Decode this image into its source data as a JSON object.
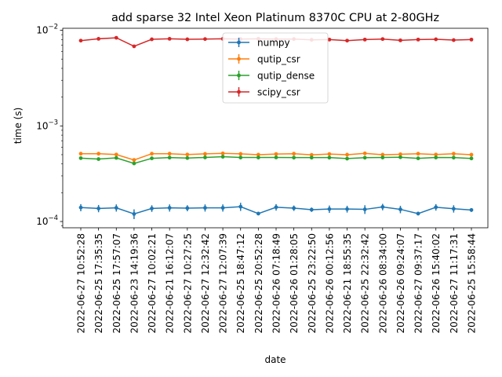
{
  "chart_data": {
    "type": "line",
    "title": "add sparse 32 Intel Xeon Platinum 8370C CPU at 2-80GHz",
    "xlabel": "date",
    "ylabel": "time (s)",
    "yscale": "log",
    "ylim": [
      8.6e-05,
      0.0105
    ],
    "yticks": [
      {
        "value": 0.0001,
        "base": "10",
        "exp": "−4"
      },
      {
        "value": 0.001,
        "base": "10",
        "exp": "−3"
      },
      {
        "value": 0.01,
        "base": "10",
        "exp": "−2"
      }
    ],
    "legend_position": "top-center",
    "grid": false,
    "categories": [
      "2022-06-27 10:52:28",
      "2022-06-25 17:35:35",
      "2022-06-25 17:57:07",
      "2022-06-23 14:19:36",
      "2022-06-27 10:02:21",
      "2022-06-21 16:12:07",
      "2022-06-27 10:27:25",
      "2022-06-27 12:32:42",
      "2022-06-27 12:07:39",
      "2022-06-25 18:47:12",
      "2022-06-25 20:52:28",
      "2022-06-26 07:18:49",
      "2022-06-26 01:28:05",
      "2022-06-25 23:22:50",
      "2022-06-26 00:12:56",
      "2022-06-21 18:55:35",
      "2022-06-25 22:32:42",
      "2022-06-26 08:34:00",
      "2022-06-26 09:24:07",
      "2022-06-27 09:37:17",
      "2022-06-26 15:40:02",
      "2022-06-27 11:17:31",
      "2022-06-25 15:58:44"
    ],
    "series": [
      {
        "name": "numpy",
        "color": "#1f77b4",
        "values": [
          0.00014,
          0.000137,
          0.000139,
          0.00012,
          0.000137,
          0.000139,
          0.000138,
          0.000139,
          0.000139,
          0.000143,
          0.000121,
          0.000141,
          0.000138,
          0.000133,
          0.000135,
          0.000135,
          0.000134,
          0.000142,
          0.000134,
          0.000121,
          0.000141,
          0.000136,
          0.000132
        ],
        "errors": [
          1.2e-05,
          1.2e-05,
          1.2e-05,
          1.4e-05,
          1.1e-05,
          1.2e-05,
          1e-05,
          1.2e-05,
          1.2e-05,
          1.4e-05,
          4e-06,
          1.1e-05,
          9e-06,
          7e-06,
          1.2e-05,
          1.1e-05,
          1.4e-05,
          1.1e-05,
          1.2e-05,
          5e-06,
          1.1e-05,
          1.2e-05,
          6e-06
        ]
      },
      {
        "name": "qutip_csr",
        "color": "#ff7f0e",
        "values": [
          0.000512,
          0.000512,
          0.000502,
          0.00044,
          0.000512,
          0.000512,
          0.000502,
          0.00051,
          0.000516,
          0.00051,
          0.0005,
          0.000508,
          0.000512,
          0.000498,
          0.000508,
          0.0005,
          0.000516,
          0.0005,
          0.000505,
          0.000512,
          0.000502,
          0.000512,
          0.0005
        ],
        "errors": [
          8e-06,
          8e-06,
          8e-06,
          1.2e-05,
          8e-06,
          8e-06,
          8e-06,
          8e-06,
          8e-06,
          8e-06,
          8e-06,
          8e-06,
          8e-06,
          8e-06,
          8e-06,
          8e-06,
          8e-06,
          8e-06,
          8e-06,
          8e-06,
          8e-06,
          8e-06,
          8e-06
        ]
      },
      {
        "name": "qutip_dense",
        "color": "#2ca02c",
        "values": [
          0.00046,
          0.00045,
          0.000463,
          0.000405,
          0.000458,
          0.000466,
          0.000461,
          0.000468,
          0.000476,
          0.000467,
          0.000467,
          0.000468,
          0.000466,
          0.000466,
          0.000466,
          0.000455,
          0.000465,
          0.000467,
          0.00047,
          0.000458,
          0.000467,
          0.000466,
          0.000457
        ],
        "errors": [
          6e-06,
          6e-06,
          6e-06,
          1e-05,
          6e-06,
          6e-06,
          6e-06,
          6e-06,
          6e-06,
          6e-06,
          6e-06,
          6e-06,
          6e-06,
          6e-06,
          6e-06,
          6e-06,
          6e-06,
          6e-06,
          6e-06,
          6e-06,
          6e-06,
          6e-06,
          6e-06
        ]
      },
      {
        "name": "scipy_csr",
        "color": "#d62728",
        "values": [
          0.0078,
          0.00815,
          0.00835,
          0.0068,
          0.00805,
          0.00815,
          0.00805,
          0.0081,
          0.00815,
          0.0081,
          0.00815,
          0.0081,
          0.0081,
          0.00795,
          0.008,
          0.0078,
          0.008,
          0.0081,
          0.00785,
          0.008,
          0.00805,
          0.0079,
          0.008
        ],
        "errors": [
          0.0001,
          0.0001,
          0.0001,
          0.00012,
          0.0001,
          0.0001,
          0.0001,
          0.0001,
          0.0001,
          0.0001,
          0.0001,
          0.0001,
          0.0001,
          0.0001,
          0.0001,
          0.0001,
          0.0001,
          0.0001,
          0.0001,
          0.0001,
          0.0001,
          0.0001,
          0.0001
        ]
      }
    ]
  }
}
